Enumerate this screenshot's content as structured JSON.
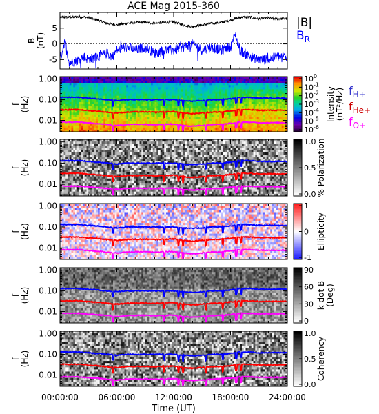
{
  "chart_data": {
    "title": "ACE Mag 2015-360",
    "type": "multi-panel",
    "xlabel": "Time (UT)",
    "x_ticks": [
      "00:00:00",
      "06:00:00",
      "12:00:00",
      "18:00:00",
      "24:00:00"
    ],
    "xlim_hours": [
      0,
      24
    ],
    "panels": [
      {
        "type": "line",
        "ylabel": "B (nT)",
        "ylabel_lines": [
          "B",
          "(nT)"
        ],
        "ylim": [
          -8,
          10
        ],
        "yticks": [
          "5",
          "0",
          "-5"
        ],
        "yticks_values": [
          5,
          0,
          -5
        ],
        "legend": [
          "|B|",
          "B"
        ],
        "legend_sub": [
          "",
          "R"
        ],
        "series": [
          {
            "name": "|B|",
            "color": "#000000",
            "x": [
              0,
              1,
              2,
              3,
              4,
              5,
              6,
              7,
              8,
              9,
              10,
              11,
              12,
              13,
              14,
              15,
              16,
              17,
              18,
              19,
              20,
              21,
              22,
              23,
              24
            ],
            "values": [
              8.5,
              8.5,
              8.6,
              8.4,
              7.5,
              6.5,
              6.0,
              6.5,
              6.8,
              6.8,
              6.5,
              6.8,
              7.0,
              6.0,
              5.5,
              6.0,
              6.5,
              6.8,
              7.5,
              8.5,
              8.5,
              8.0,
              8.2,
              8.0,
              8.0
            ]
          },
          {
            "name": "BR",
            "color": "#0000ff",
            "x": [
              0,
              0.5,
              1,
              2,
              2.5,
              3,
              4,
              5,
              5.5,
              6,
              7,
              8,
              9,
              10,
              11,
              12,
              13,
              14,
              15,
              16,
              17,
              18,
              18.5,
              19,
              20,
              21,
              22,
              23,
              24
            ],
            "values": [
              -5,
              1,
              -6,
              -5,
              -4,
              -5,
              -4,
              -3,
              -4,
              -2,
              -1,
              -2,
              -1,
              -3,
              -2,
              -2,
              -1,
              0,
              -2,
              -1,
              -2,
              -1,
              3,
              -2,
              -4,
              -5,
              -5,
              -4,
              -4
            ]
          }
        ]
      },
      {
        "type": "heatmap",
        "ylabel": "f (Hz)",
        "ylabel_lines": [
          "f",
          "(Hz)"
        ],
        "yticks": [
          "1.00",
          "0.10",
          "0.01"
        ],
        "yticks_values": [
          1.0,
          0.1,
          0.01
        ],
        "colorbar": "rainbow",
        "colorbar_label": "Intensity (nT²/Hz)",
        "colorbar_label_lines": [
          "Intensity",
          "(nT²/Hz)"
        ],
        "colorbar_ticks": [
          "10",
          "10",
          "10",
          "10",
          "10",
          "10",
          "10"
        ],
        "colorbar_exponents": [
          "0",
          "-1",
          "-2",
          "-3",
          "-4",
          "-5",
          "-6"
        ],
        "colorbar_range": [
          -6,
          0
        ],
        "legend": [
          "f",
          "f",
          "f"
        ],
        "legend_sub": [
          "H+",
          "He+",
          "O+"
        ]
      },
      {
        "type": "heatmap",
        "ylabel_lines": [
          "f",
          "(Hz)"
        ],
        "yticks": [
          "1.00",
          "0.10",
          "0.01"
        ],
        "colorbar": "gray",
        "colorbar_label": "% Polarization",
        "colorbar_label_lines": [
          "% Polarization"
        ],
        "colorbar_ticks": [
          "1.0",
          "0.5",
          "0.0"
        ],
        "colorbar_range": [
          0,
          1
        ]
      },
      {
        "type": "heatmap",
        "ylabel_lines": [
          "f",
          "(Hz)"
        ],
        "yticks": [
          "1.00",
          "0.10",
          "0.01"
        ],
        "colorbar": "bwr",
        "colorbar_label": "Ellipticity",
        "colorbar_label_lines": [
          "Ellipticity"
        ],
        "colorbar_ticks": [
          "1",
          "0",
          "-1"
        ],
        "colorbar_range": [
          -1,
          1
        ]
      },
      {
        "type": "heatmap",
        "ylabel_lines": [
          "f",
          "(Hz)"
        ],
        "yticks": [
          "1.00",
          "0.10",
          "0.01"
        ],
        "colorbar": "gray",
        "colorbar_label": "k dot B (Deg)",
        "colorbar_label_lines": [
          "k dot B",
          "(Deg)"
        ],
        "colorbar_ticks": [
          "90",
          "60",
          "30",
          "0"
        ],
        "colorbar_range": [
          0,
          90
        ]
      },
      {
        "type": "heatmap",
        "ylabel_lines": [
          "f",
          "(Hz)"
        ],
        "yticks": [
          "1.00",
          "0.10",
          "0.01"
        ],
        "colorbar": "gray",
        "colorbar_label": "Coherency",
        "colorbar_label_lines": [
          "Coherency"
        ],
        "colorbar_ticks": [
          "1.0",
          "0.5",
          "0.0"
        ],
        "colorbar_range": [
          0,
          1
        ]
      }
    ],
    "gyrofrequency_lines": [
      {
        "name": "fH+",
        "color": "#0000ff",
        "x": [
          0,
          1,
          2,
          3,
          4,
          5,
          6,
          7,
          8,
          9,
          10,
          11,
          12,
          13,
          14,
          15,
          16,
          17,
          18,
          19,
          20,
          21,
          22,
          23,
          24
        ],
        "values": [
          0.13,
          0.13,
          0.13,
          0.12,
          0.11,
          0.1,
          0.09,
          0.1,
          0.1,
          0.1,
          0.1,
          0.1,
          0.1,
          0.09,
          0.085,
          0.09,
          0.1,
          0.1,
          0.11,
          0.13,
          0.13,
          0.12,
          0.12,
          0.12,
          0.12
        ]
      },
      {
        "name": "fHe+",
        "color": "#ff0000",
        "x": [
          0,
          1,
          2,
          3,
          4,
          5,
          6,
          7,
          8,
          9,
          10,
          11,
          12,
          13,
          14,
          15,
          16,
          17,
          18,
          19,
          20,
          21,
          22,
          23,
          24
        ],
        "values": [
          0.033,
          0.033,
          0.033,
          0.03,
          0.028,
          0.025,
          0.023,
          0.025,
          0.026,
          0.026,
          0.025,
          0.026,
          0.027,
          0.023,
          0.021,
          0.023,
          0.025,
          0.026,
          0.029,
          0.033,
          0.033,
          0.031,
          0.031,
          0.031,
          0.031
        ]
      },
      {
        "name": "fO+",
        "color": "#ff00ff",
        "x": [
          0,
          1,
          2,
          3,
          4,
          5,
          6,
          7,
          8,
          9,
          10,
          11,
          12,
          13,
          14,
          15,
          16,
          17,
          18,
          19,
          20,
          21,
          22,
          23,
          24
        ],
        "values": [
          0.0082,
          0.0082,
          0.0082,
          0.0075,
          0.007,
          0.0063,
          0.0057,
          0.0063,
          0.0065,
          0.0065,
          0.0063,
          0.0065,
          0.0067,
          0.0057,
          0.0053,
          0.0057,
          0.0063,
          0.0065,
          0.0072,
          0.0082,
          0.0082,
          0.0078,
          0.0078,
          0.0078,
          0.0078
        ]
      }
    ]
  }
}
